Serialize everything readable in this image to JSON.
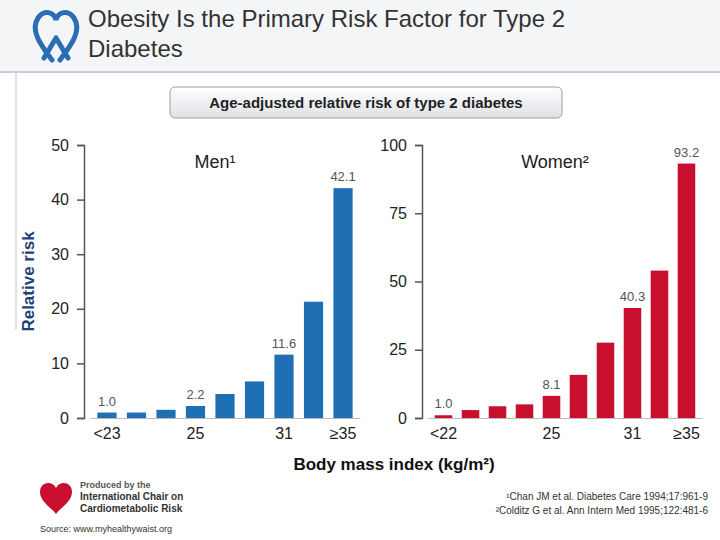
{
  "header": {
    "title": [
      "Obesity Is the Primary Risk Factor for Type 2",
      "Diabetes"
    ],
    "subtitle": "Age-adjusted relative risk of type 2 diabetes"
  },
  "chart_data": [
    {
      "type": "bar",
      "title": "Men¹",
      "ylabel": "Relative risk",
      "categories": [
        "<23",
        null,
        null,
        "25",
        null,
        null,
        "31",
        null,
        "≥35"
      ],
      "values": [
        1.0,
        1.0,
        1.5,
        2.2,
        4.4,
        6.7,
        11.6,
        21.3,
        42.1
      ],
      "value_labels": [
        "1.0",
        null,
        null,
        "2.2",
        null,
        null,
        "11.6",
        null,
        "42.1"
      ],
      "data_labels": true,
      "color": "#1f6fb5",
      "ylim": [
        0,
        50
      ],
      "yticks": [
        0,
        10,
        20,
        30,
        40,
        50
      ],
      "grid": false
    },
    {
      "type": "bar",
      "title": "Women²",
      "categories": [
        "<22",
        null,
        null,
        null,
        "25",
        null,
        null,
        "31",
        null,
        "≥35"
      ],
      "values": [
        1.0,
        2.9,
        4.3,
        5.0,
        8.1,
        15.8,
        27.6,
        40.3,
        54.0,
        93.2
      ],
      "value_labels": [
        "1.0",
        null,
        null,
        null,
        "8.1",
        null,
        null,
        "40.3",
        null,
        "93.2"
      ],
      "data_labels": true,
      "color": "#c8102e",
      "ylim": [
        0,
        100
      ],
      "yticks": [
        0,
        25,
        50,
        75,
        100
      ],
      "grid": false
    }
  ],
  "xlabel": "Body mass index (kg/m²)",
  "footnotes": [
    "¹Chan JM et al. Diabetes Care 1994;17:961-9",
    "²Colditz G et al. Ann Intern Med 1995;122:481-6"
  ],
  "logo": [
    "Produced by the",
    "International Chair on",
    "Cardiometabolic Risk"
  ],
  "source": "Source: www.myhealthywaist.org"
}
